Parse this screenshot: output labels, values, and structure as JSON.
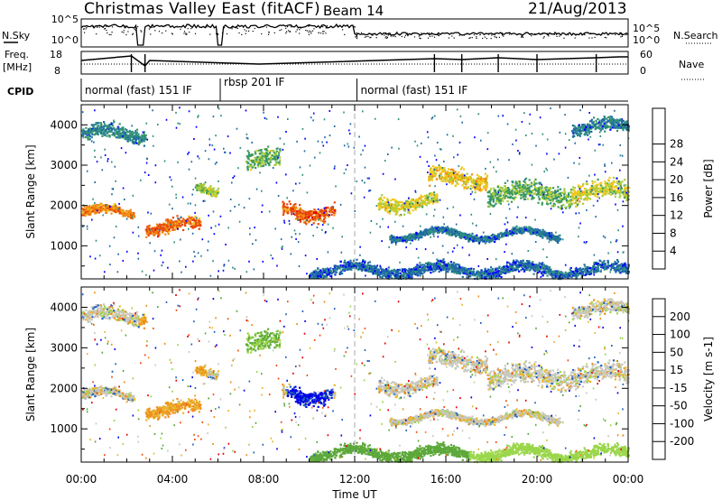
{
  "header": {
    "title": "Christmas Valley East (fitACF)",
    "beam": "Beam 14",
    "date": "21/Aug/2013"
  },
  "panels": {
    "nsky": {
      "label": "N.Sky",
      "ticks": [
        "10^5",
        "10^0"
      ],
      "right_label": "N.Search",
      "right_ticks": [
        "10^5",
        "10^0"
      ]
    },
    "freq": {
      "label_line1": "Freq.",
      "label_line2": "[MHz]",
      "ticks": [
        "18",
        "8"
      ],
      "right_label": "Nave",
      "right_ticks": [
        "60",
        "0"
      ]
    },
    "cpid": {
      "label": "CPID",
      "modes": [
        "normal (fast) 151 IF",
        "rbsp 201 IF",
        "normal (fast) 151 IF"
      ]
    }
  },
  "chart_data": [
    {
      "type": "heatmap",
      "title": "",
      "xlabel": "Time UT",
      "ylabel": "Slant Range [km]",
      "xticks": [
        "00:00",
        "04:00",
        "08:00",
        "12:00",
        "16:00",
        "20:00",
        "00:00"
      ],
      "xlim": [
        0,
        24
      ],
      "ylim": [
        180,
        4500
      ],
      "yticks": [
        1000,
        2000,
        3000,
        4000
      ],
      "colorbar": {
        "label": "Power [dB]",
        "ticks": [
          4,
          8,
          12,
          16,
          20,
          24,
          28
        ]
      }
    },
    {
      "type": "heatmap",
      "title": "",
      "xlabel": "Time UT",
      "ylabel": "Slant Range [km]",
      "xticks": [
        "00:00",
        "04:00",
        "08:00",
        "12:00",
        "16:00",
        "20:00",
        "00:00"
      ],
      "xlim": [
        0,
        24
      ],
      "ylim": [
        180,
        4500
      ],
      "yticks": [
        1000,
        2000,
        3000,
        4000
      ],
      "colorbar": {
        "label": "Velocity [m s-1]",
        "ticks": [
          200,
          100,
          50,
          15,
          -15,
          -50,
          -100,
          -200
        ]
      }
    }
  ],
  "colors": {
    "power_scale": [
      "#0000ff",
      "#1f6aa5",
      "#2f8f7f",
      "#3e9a5a",
      "#a6cc3a",
      "#f2c71a",
      "#f08a12",
      "#e8480c",
      "#e00000"
    ],
    "velocity_scale": [
      "#0000e6",
      "#2060c0",
      "#5ca83a",
      "#9ad64a",
      "#c8c8c0",
      "#e6b830",
      "#f08c1a",
      "#f04c10",
      "#e60000"
    ]
  }
}
